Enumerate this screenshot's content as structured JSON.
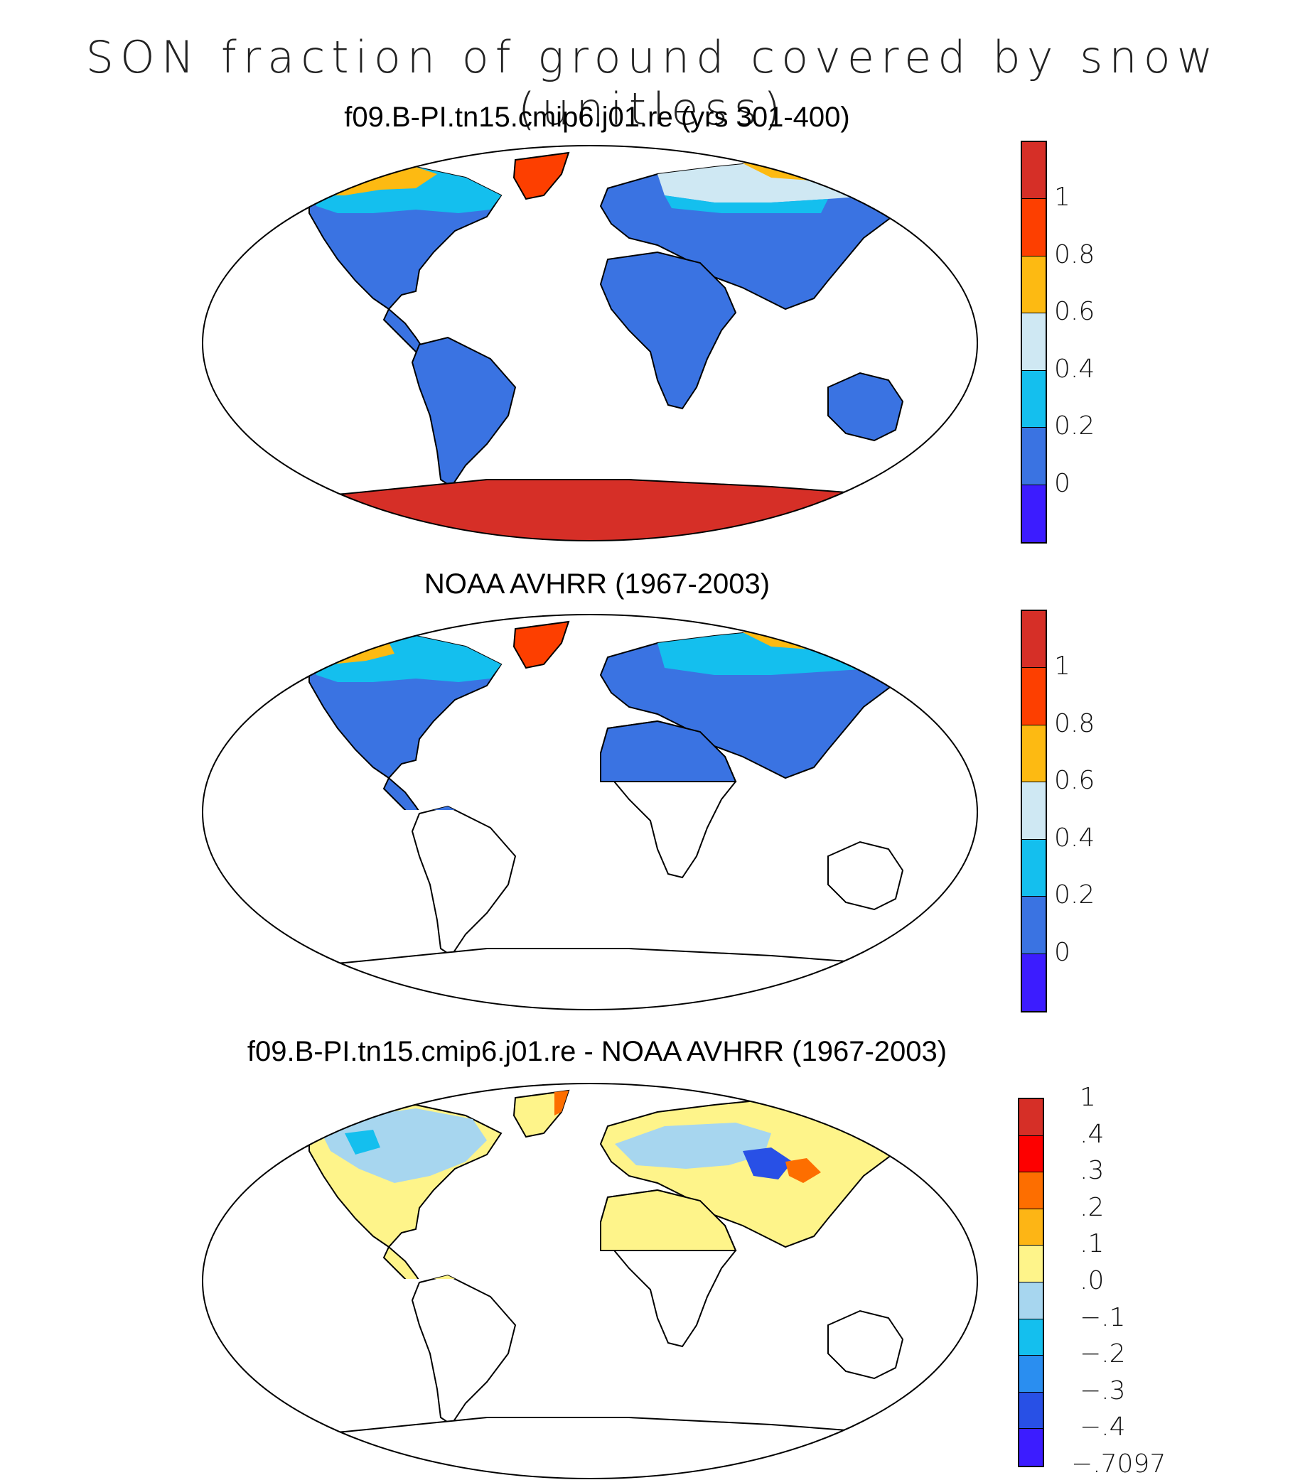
{
  "title": "SON fraction of ground covered by snow (unitless)",
  "panels": [
    {
      "title": "f09.B-PI.tn15.cmip6.j01.re (yrs 301-400)",
      "coverage": "global",
      "colorbar": {
        "colors": [
          "#d62f27",
          "#fd3f00",
          "#fdba12",
          "#cfe8f3",
          "#14bfee",
          "#3a73e2",
          "#3c1cff"
        ],
        "labels": [
          "1",
          "0.8",
          "0.6",
          "0.4",
          "0.2",
          "0"
        ]
      }
    },
    {
      "title": "NOAA AVHRR (1967-2003)",
      "coverage": "northern-hemisphere",
      "colorbar": {
        "colors": [
          "#d62f27",
          "#fd3f00",
          "#fdba12",
          "#cfe8f3",
          "#14bfee",
          "#3a73e2",
          "#3c1cff"
        ],
        "labels": [
          "1",
          "0.8",
          "0.6",
          "0.4",
          "0.2",
          "0"
        ]
      }
    },
    {
      "title": "f09.B-PI.tn15.cmip6.j01.re - NOAA AVHRR (1967-2003)",
      "coverage": "northern-hemisphere",
      "colorbar": {
        "colors": [
          "#d62f27",
          "#fd0000",
          "#fd6e00",
          "#fdb515",
          "#fef48a",
          "#a7d6ef",
          "#14bfee",
          "#2a8ef0",
          "#2850e6",
          "#3c1cff"
        ],
        "labels": [
          "1",
          ".4",
          ".3",
          ".2",
          ".1",
          ".0",
          "−.1",
          "−.2",
          "−.3",
          "−.4",
          "−.7097"
        ]
      }
    }
  ]
}
